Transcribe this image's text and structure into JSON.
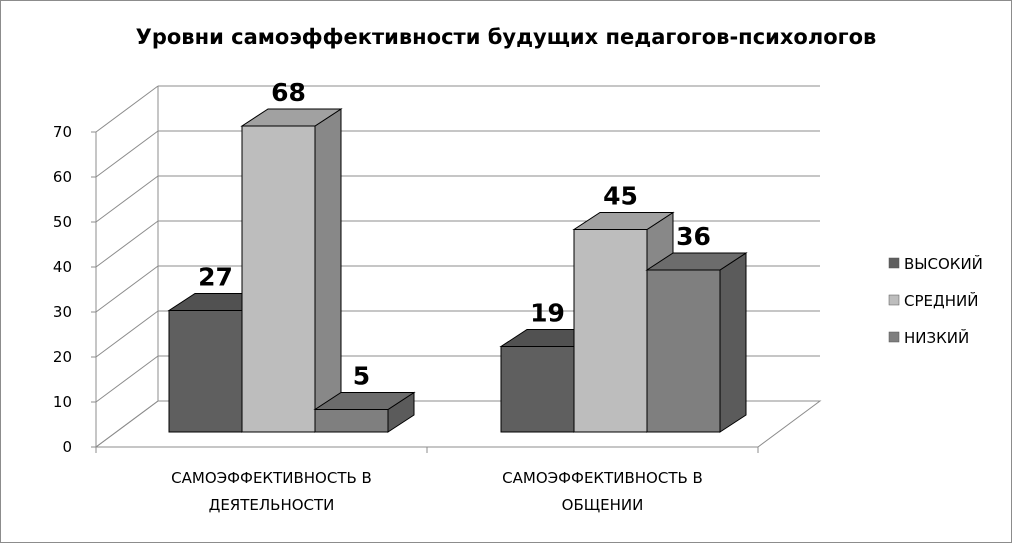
{
  "chart_data": {
    "type": "bar",
    "title": "Уровни самоэффективности будущих педагогов-психологов",
    "categories": [
      [
        "САМОЭФФЕКТИВНОСТЬ В",
        "ДЕЯТЕЛЬНОСТИ"
      ],
      [
        "САМОЭФФЕКТИВНОСТЬ В",
        "ОБЩЕНИИ"
      ]
    ],
    "series": [
      {
        "name": "ВЫСОКИЙ",
        "values": [
          27,
          19
        ],
        "color": "#5f5f5f"
      },
      {
        "name": "СРЕДНИЙ",
        "values": [
          68,
          45
        ],
        "color": "#bdbdbd"
      },
      {
        "name": "НИЗКИЙ",
        "values": [
          5,
          36
        ],
        "color": "#7f7f7f"
      }
    ],
    "ylim": [
      0,
      70
    ],
    "yticks": [
      0,
      10,
      20,
      30,
      40,
      50,
      60,
      70
    ],
    "grid": true,
    "legend": "right",
    "projection": "3d-clustered-column"
  }
}
